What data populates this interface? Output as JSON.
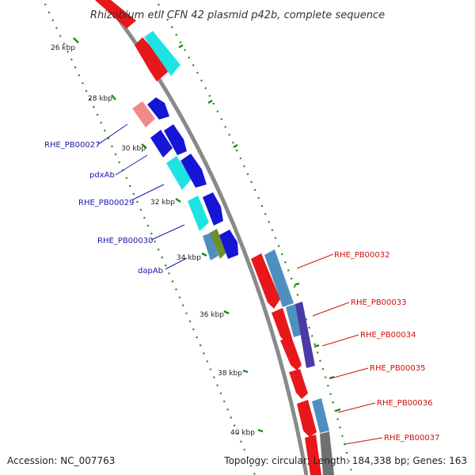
{
  "title": "Rhizobium etli CFN 42 plasmid p42b, complete sequence",
  "footer": {
    "accession": "Accession: NC_007763",
    "summary": "Topology: circular; Length: 184,338 bp; Genes: 163"
  },
  "scale_labels": [
    "26 kbp",
    "28 kbp",
    "30 kbp",
    "32 kbp",
    "34 kbp",
    "36 kbp",
    "38 kbp",
    "40 kbp"
  ],
  "gene_labels_left": [
    "RHE_PB00027",
    "pdxAb",
    "RHE_PB00029",
    "RHE_PB00030",
    "dapAb"
  ],
  "gene_labels_right": [
    "RHE_PB00032",
    "RHE_PB00033",
    "RHE_PB00034",
    "RHE_PB00035",
    "RHE_PB00036",
    "RHE_PB00037"
  ],
  "colors": {
    "backbone": "#8a8a8a",
    "forward_cds": "#e8171c",
    "forward_cds_light": "#f08a8a",
    "reverse_cds": "#1515d6",
    "cyan_feature": "#1fe3e3",
    "steel_feature": "#4f8fc0",
    "purple_feature": "#4a3aa8",
    "olive_feature": "#6e8f2a",
    "gray_feature": "#707070",
    "tick": "#1a8a1a",
    "label_left": "#1a1aaa",
    "label_right": "#cc1111"
  }
}
